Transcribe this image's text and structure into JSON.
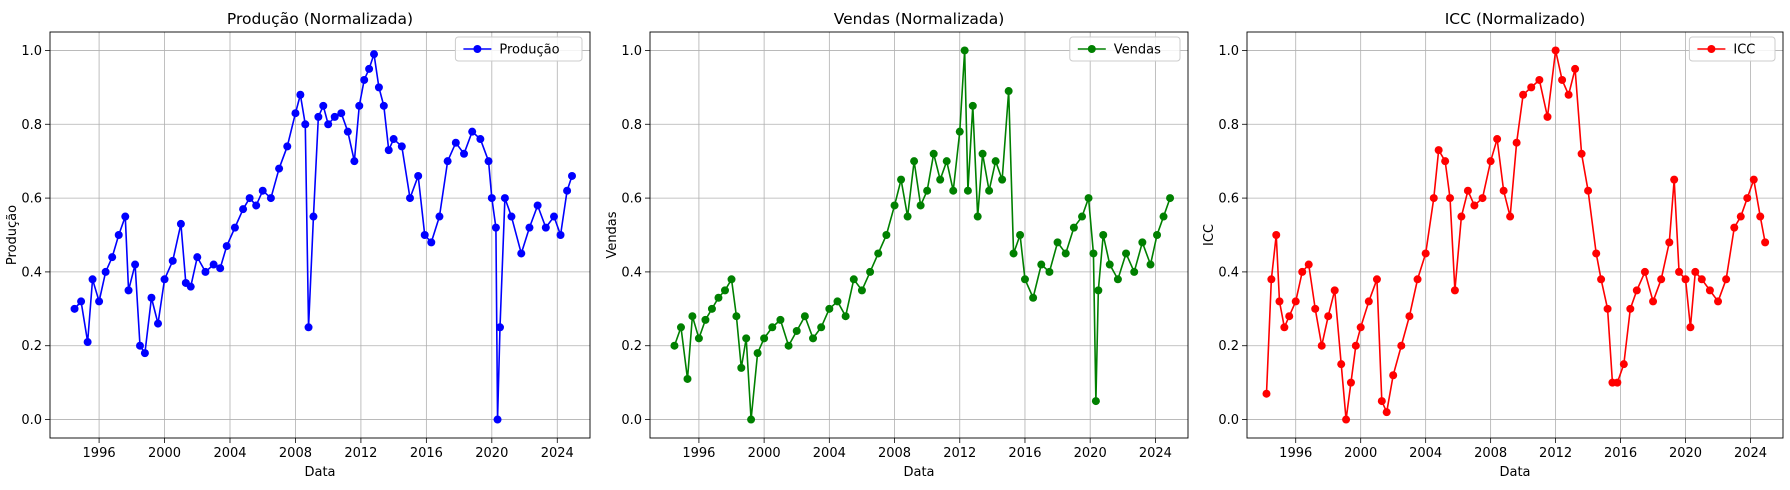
{
  "colors": {
    "blue": "#0000ff",
    "green": "#008000",
    "red": "#ff0000",
    "grid": "#b0b0b0"
  },
  "chart_data": [
    {
      "type": "line",
      "title": "Produção (Normalizada)",
      "xlabel": "Data",
      "ylabel": "Produção",
      "xlim": [
        1993.0,
        2026.0
      ],
      "ylim": [
        -0.05,
        1.05
      ],
      "xticks": [
        "1996",
        "2000",
        "2004",
        "2008",
        "2012",
        "2016",
        "2020",
        "2024"
      ],
      "yticks": [
        "0.0",
        "0.2",
        "0.4",
        "0.6",
        "0.8",
        "1.0"
      ],
      "grid": true,
      "legend_position": "top-right",
      "series": [
        {
          "name": "Produção",
          "color": "#0000ff",
          "marker": "circle",
          "x": [
            1994.5,
            1994.9,
            1995.3,
            1995.6,
            1996.0,
            1996.4,
            1996.8,
            1997.2,
            1997.6,
            1997.8,
            1998.2,
            1998.5,
            1998.8,
            1999.2,
            1999.6,
            2000.0,
            2000.5,
            2001.0,
            2001.3,
            2001.6,
            2002.0,
            2002.5,
            2003.0,
            2003.4,
            2003.8,
            2004.3,
            2004.8,
            2005.2,
            2005.6,
            2006.0,
            2006.5,
            2007.0,
            2007.5,
            2008.0,
            2008.3,
            2008.6,
            2008.8,
            2009.1,
            2009.4,
            2009.7,
            2010.0,
            2010.4,
            2010.8,
            2011.2,
            2011.6,
            2011.9,
            2012.2,
            2012.5,
            2012.8,
            2013.1,
            2013.4,
            2013.7,
            2014.0,
            2014.5,
            2015.0,
            2015.5,
            2015.9,
            2016.3,
            2016.8,
            2017.3,
            2017.8,
            2018.3,
            2018.8,
            2019.3,
            2019.8,
            2020.0,
            2020.25,
            2020.35,
            2020.5,
            2020.8,
            2021.2,
            2021.8,
            2022.3,
            2022.8,
            2023.3,
            2023.8,
            2024.2,
            2024.6,
            2024.9
          ],
          "y": [
            0.3,
            0.32,
            0.21,
            0.38,
            0.32,
            0.4,
            0.44,
            0.5,
            0.55,
            0.35,
            0.42,
            0.2,
            0.18,
            0.33,
            0.26,
            0.38,
            0.43,
            0.53,
            0.37,
            0.36,
            0.44,
            0.4,
            0.42,
            0.41,
            0.47,
            0.52,
            0.57,
            0.6,
            0.58,
            0.62,
            0.6,
            0.68,
            0.74,
            0.83,
            0.88,
            0.8,
            0.25,
            0.55,
            0.82,
            0.85,
            0.8,
            0.82,
            0.83,
            0.78,
            0.7,
            0.85,
            0.92,
            0.95,
            0.99,
            0.9,
            0.85,
            0.73,
            0.76,
            0.74,
            0.6,
            0.66,
            0.5,
            0.48,
            0.55,
            0.7,
            0.75,
            0.72,
            0.78,
            0.76,
            0.7,
            0.6,
            0.52,
            0.0,
            0.25,
            0.6,
            0.55,
            0.45,
            0.52,
            0.58,
            0.52,
            0.55,
            0.5,
            0.62,
            0.66
          ]
        }
      ]
    },
    {
      "type": "line",
      "title": "Vendas (Normalizada)",
      "xlabel": "Data",
      "ylabel": "Vendas",
      "xlim": [
        1993.0,
        2026.0
      ],
      "ylim": [
        -0.05,
        1.05
      ],
      "xticks": [
        "1996",
        "2000",
        "2004",
        "2008",
        "2012",
        "2016",
        "2020",
        "2024"
      ],
      "yticks": [
        "0.0",
        "0.2",
        "0.4",
        "0.6",
        "0.8",
        "1.0"
      ],
      "grid": true,
      "legend_position": "top-right",
      "series": [
        {
          "name": "Vendas",
          "color": "#008000",
          "marker": "circle",
          "x": [
            1994.5,
            1994.9,
            1995.3,
            1995.6,
            1996.0,
            1996.4,
            1996.8,
            1997.2,
            1997.6,
            1998.0,
            1998.3,
            1998.6,
            1998.9,
            1999.2,
            1999.6,
            2000.0,
            2000.5,
            2001.0,
            2001.5,
            2002.0,
            2002.5,
            2003.0,
            2003.5,
            2004.0,
            2004.5,
            2005.0,
            2005.5,
            2006.0,
            2006.5,
            2007.0,
            2007.5,
            2008.0,
            2008.4,
            2008.8,
            2009.2,
            2009.6,
            2010.0,
            2010.4,
            2010.8,
            2011.2,
            2011.6,
            2012.0,
            2012.3,
            2012.5,
            2012.8,
            2013.1,
            2013.4,
            2013.8,
            2014.2,
            2014.6,
            2015.0,
            2015.3,
            2015.7,
            2016.0,
            2016.5,
            2017.0,
            2017.5,
            2018.0,
            2018.5,
            2019.0,
            2019.5,
            2019.9,
            2020.2,
            2020.35,
            2020.5,
            2020.8,
            2021.2,
            2021.7,
            2022.2,
            2022.7,
            2023.2,
            2023.7,
            2024.1,
            2024.5,
            2024.9
          ],
          "y": [
            0.2,
            0.25,
            0.11,
            0.28,
            0.22,
            0.27,
            0.3,
            0.33,
            0.35,
            0.38,
            0.28,
            0.14,
            0.22,
            0.0,
            0.18,
            0.22,
            0.25,
            0.27,
            0.2,
            0.24,
            0.28,
            0.22,
            0.25,
            0.3,
            0.32,
            0.28,
            0.38,
            0.35,
            0.4,
            0.45,
            0.5,
            0.58,
            0.65,
            0.55,
            0.7,
            0.58,
            0.62,
            0.72,
            0.65,
            0.7,
            0.62,
            0.78,
            1.0,
            0.62,
            0.85,
            0.55,
            0.72,
            0.62,
            0.7,
            0.65,
            0.89,
            0.45,
            0.5,
            0.38,
            0.33,
            0.42,
            0.4,
            0.48,
            0.45,
            0.52,
            0.55,
            0.6,
            0.45,
            0.05,
            0.35,
            0.5,
            0.42,
            0.38,
            0.45,
            0.4,
            0.48,
            0.42,
            0.5,
            0.55,
            0.6
          ]
        }
      ]
    },
    {
      "type": "line",
      "title": "ICC (Normalizado)",
      "xlabel": "Data",
      "ylabel": "ICC",
      "xlim": [
        1993.0,
        2026.0
      ],
      "ylim": [
        -0.05,
        1.05
      ],
      "xticks": [
        "1996",
        "2000",
        "2004",
        "2008",
        "2012",
        "2016",
        "2020",
        "2024"
      ],
      "yticks": [
        "0.0",
        "0.2",
        "0.4",
        "0.6",
        "0.8",
        "1.0"
      ],
      "grid": true,
      "legend_position": "top-right",
      "series": [
        {
          "name": "ICC",
          "color": "#ff0000",
          "marker": "circle",
          "x": [
            1994.2,
            1994.5,
            1994.8,
            1995.0,
            1995.3,
            1995.6,
            1996.0,
            1996.4,
            1996.8,
            1997.2,
            1997.6,
            1998.0,
            1998.4,
            1998.8,
            1999.1,
            1999.4,
            1999.7,
            2000.0,
            2000.5,
            2001.0,
            2001.3,
            2001.6,
            2002.0,
            2002.5,
            2003.0,
            2003.5,
            2004.0,
            2004.5,
            2004.8,
            2005.2,
            2005.5,
            2005.8,
            2006.2,
            2006.6,
            2007.0,
            2007.5,
            2008.0,
            2008.4,
            2008.8,
            2009.2,
            2009.6,
            2010.0,
            2010.5,
            2011.0,
            2011.5,
            2012.0,
            2012.4,
            2012.8,
            2013.2,
            2013.6,
            2014.0,
            2014.5,
            2014.8,
            2015.2,
            2015.5,
            2015.8,
            2016.2,
            2016.6,
            2017.0,
            2017.5,
            2018.0,
            2018.5,
            2019.0,
            2019.3,
            2019.6,
            2020.0,
            2020.3,
            2020.6,
            2021.0,
            2021.5,
            2022.0,
            2022.5,
            2023.0,
            2023.4,
            2023.8,
            2024.2,
            2024.6,
            2024.9
          ],
          "y": [
            0.07,
            0.38,
            0.5,
            0.32,
            0.25,
            0.28,
            0.32,
            0.4,
            0.42,
            0.3,
            0.2,
            0.28,
            0.35,
            0.15,
            0.0,
            0.1,
            0.2,
            0.25,
            0.32,
            0.38,
            0.05,
            0.02,
            0.12,
            0.2,
            0.28,
            0.38,
            0.45,
            0.6,
            0.73,
            0.7,
            0.6,
            0.35,
            0.55,
            0.62,
            0.58,
            0.6,
            0.7,
            0.76,
            0.62,
            0.55,
            0.75,
            0.88,
            0.9,
            0.92,
            0.82,
            1.0,
            0.92,
            0.88,
            0.95,
            0.72,
            0.62,
            0.45,
            0.38,
            0.3,
            0.1,
            0.1,
            0.15,
            0.3,
            0.35,
            0.4,
            0.32,
            0.38,
            0.48,
            0.65,
            0.4,
            0.38,
            0.25,
            0.4,
            0.38,
            0.35,
            0.32,
            0.38,
            0.52,
            0.55,
            0.6,
            0.65,
            0.55,
            0.48
          ]
        }
      ]
    }
  ]
}
